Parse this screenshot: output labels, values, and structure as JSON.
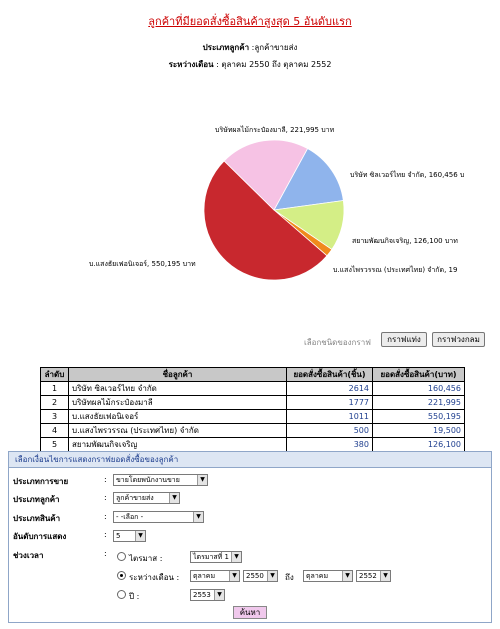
{
  "header": {
    "title": "ลูกค้าที่มียอดสั่งซื้อสินค้าสูงสุด 5 อันดับแรก",
    "customer_type_label": "ประเภทลูกค้า",
    "customer_type_value": ":ลูกค้าขายส่ง",
    "period_label": "ระหว่างเดือน",
    "period_value": ": ตุลาคม 2550 ถึง ตุลาคม 2552"
  },
  "chart_data": {
    "type": "pie",
    "unit": "บาท",
    "slices": [
      {
        "name": "บริษัท ซิลเวอร์ไทย จำกัด",
        "value": 160456,
        "label": "บริษัท ซิลเวอร์ไทย จำกัด, 160,456 บ",
        "color": "#8fb4ec"
      },
      {
        "name": "สยามพัฒนกิจเจริญ",
        "value": 126100,
        "label": "สยามพัฒนกิจเจริญ, 126,100 บาท",
        "color": "#d4ee86"
      },
      {
        "name": "บ.แสงไพรวรรณ (ประเทศไทย) จำกัด",
        "value": 19500,
        "label": "บ.แสงไพรวรรณ (ประเทศไทย) จำกัด, 19",
        "color": "#f08a1c"
      },
      {
        "name": "บ.แสงธัยเฟอนิเจอร์",
        "value": 550195,
        "label": "บ.แสงธัยเฟอนิเจอร์, 550,195 บาท",
        "color": "#c8282e"
      },
      {
        "name": "บริษัทผลไม้กระป๋องมาลี",
        "value": 221995,
        "label": "บริษัทผลไม้กระป๋องมาลี, 221,995 บาท",
        "color": "#f6c2e4"
      }
    ]
  },
  "chart_controls": {
    "chart_type_label": "เลือกชนิดของกราฟ",
    "bar_button": "กราฟแท่ง",
    "pie_button": "กราฟวงกลม"
  },
  "table": {
    "headers": [
      "ลำดับ",
      "ชื่อลูกค้า",
      "ยอดสั่งซื้อสินค้า(ชิ้น)",
      "ยอดสั่งซื้อสินค้า(บาท)"
    ],
    "rows": [
      [
        "1",
        "บริษัท ซิลเวอร์ไทย จำกัด",
        "2614",
        "160,456"
      ],
      [
        "2",
        "บริษัทผลไม้กระป๋องมาลี",
        "1777",
        "221,995"
      ],
      [
        "3",
        "บ.แสงธัยเฟอนิเจอร์",
        "1011",
        "550,195"
      ],
      [
        "4",
        "บ.แสงไพรวรรณ (ประเทศไทย) จำกัด",
        "500",
        "19,500"
      ],
      [
        "5",
        "สยามพัฒนกิจเจริญ",
        "380",
        "126,100"
      ]
    ]
  },
  "filter": {
    "heading": "เลือกเงื่อนไขการแสดงกราฟยอดสั่งซื้อของลูกค้า",
    "colon": ":",
    "sale_type": {
      "label": "ประเภทการขาย",
      "value": "ขายโดยพนักงานขาย"
    },
    "customer_type": {
      "label": "ประเภทลูกค้า",
      "value": "ลูกค้าขายส่ง"
    },
    "product_type": {
      "label": "ประเภทสินค้า",
      "value": "- -เลือก -"
    },
    "rank": {
      "label": "อันดับการแสดง",
      "value": "5"
    },
    "period": {
      "label": "ช่วงเวลา",
      "quarter_label": "ไตรมาส :",
      "quarter_value": "ไตรมาสที่ 1",
      "between_label": "ระหว่างเดือน :",
      "from_month": "ตุลาคม",
      "from_year": "2550",
      "to_label": "ถึง",
      "to_month": "ตุลาคม",
      "to_year": "2552",
      "year_label": "ปี :",
      "year_value": "2553",
      "selected": "between"
    },
    "search_button": "ค้นหา"
  },
  "icons": {
    "dropdown": "chevron-down-icon"
  }
}
